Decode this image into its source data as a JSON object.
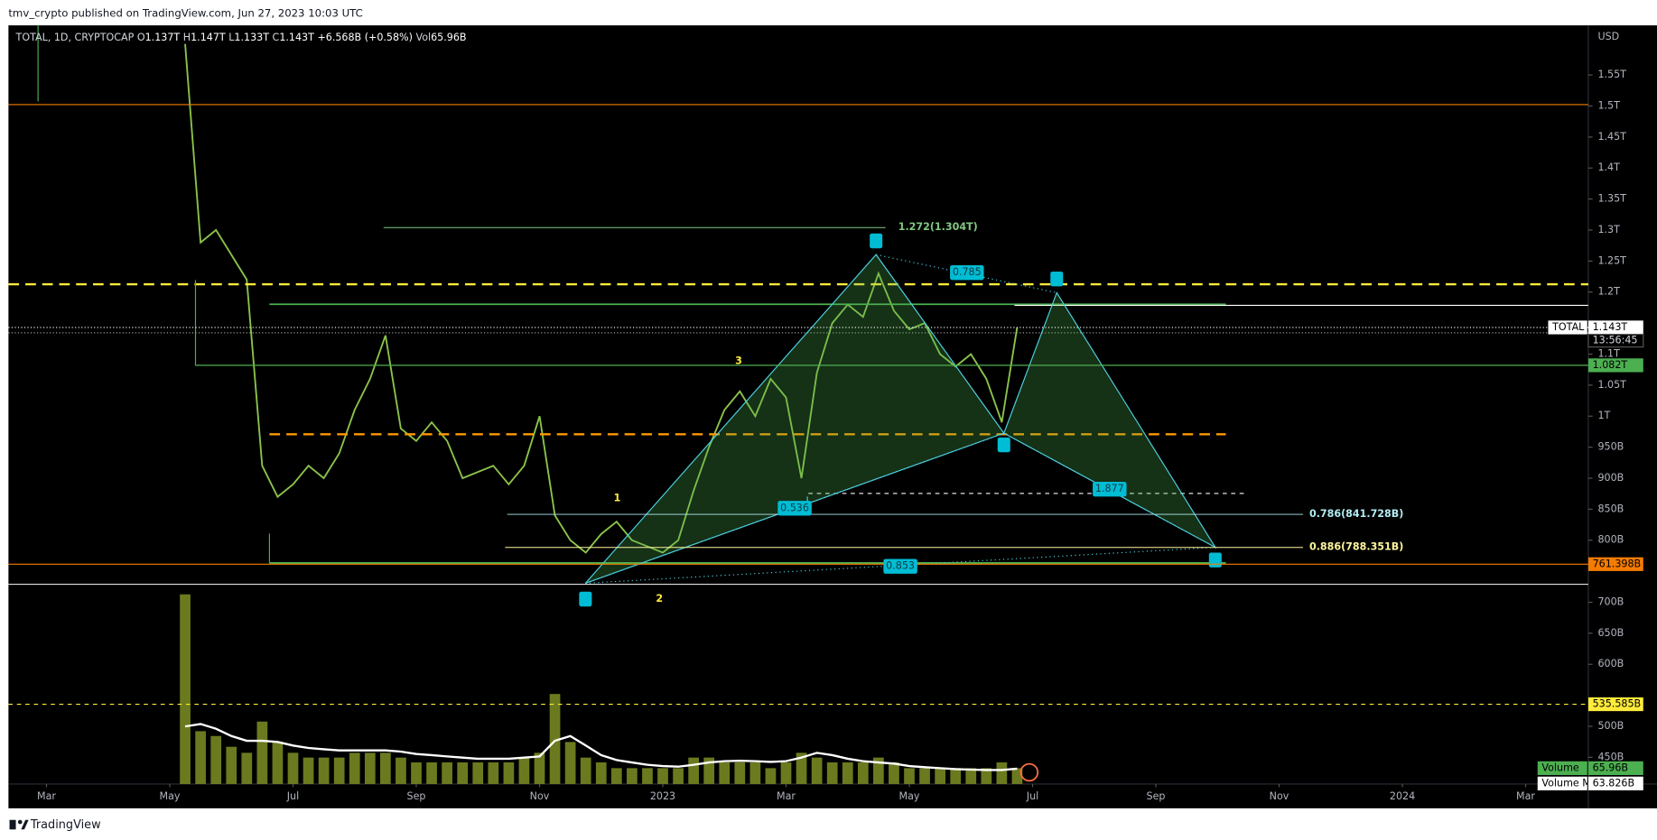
{
  "chart_data": {
    "type": "line",
    "header": "tmv_crypto published on TradingView.com, Jun 27, 2023 10:03 UTC",
    "title": "TOTAL, 1D, CRYPTOCAP",
    "ohlc": [
      {
        "key": "O",
        "text": "1.137T"
      },
      {
        "key": "H",
        "text": "1.147T"
      },
      {
        "key": "L",
        "text": "1.133T"
      },
      {
        "key": "C",
        "text": "1.143T"
      }
    ],
    "change": "+6.568B (+0.58%)",
    "volume_key": "Vol",
    "y_unit": "USD",
    "footer": "TradingView",
    "categories": [
      "Mar",
      null,
      null,
      null,
      null,
      null,
      null,
      null,
      "May",
      null,
      null,
      null,
      null,
      null,
      null,
      null,
      "Jul",
      null,
      null,
      null,
      null,
      null,
      null,
      null,
      "Sep",
      null,
      null,
      null,
      null,
      null,
      null,
      null,
      "Nov",
      null,
      null,
      null,
      null,
      null,
      null,
      null,
      "2023",
      null,
      null,
      null,
      null,
      null,
      null,
      null,
      "Mar",
      null,
      null,
      null,
      null,
      null,
      null,
      null,
      "May",
      null,
      null,
      null,
      null,
      null,
      null,
      null,
      "Jul",
      null,
      null,
      null,
      null,
      null,
      null,
      null,
      "Sep",
      null,
      null,
      null,
      null,
      null,
      null,
      null,
      "Nov",
      null,
      null,
      null,
      null,
      null,
      null,
      null,
      "2024",
      null,
      null,
      null,
      null,
      null,
      null,
      null,
      "Mar"
    ],
    "series": [
      {
        "name": "TOTAL",
        "color": "#8bc34a",
        "values": [
          null,
          null,
          null,
          null,
          null,
          null,
          null,
          null,
          null,
          1600,
          1280,
          1300,
          1260,
          1220,
          920,
          870,
          890,
          920,
          900,
          940,
          1010,
          1060,
          1130,
          980,
          960,
          990,
          960,
          900,
          910,
          920,
          890,
          920,
          1000,
          840,
          800,
          780,
          810,
          830,
          800,
          790,
          780,
          800,
          880,
          950,
          1010,
          1040,
          1000,
          1060,
          1030,
          900,
          1070,
          1150,
          1180,
          1160,
          1230,
          1170,
          1140,
          1150,
          1100,
          1080,
          1100,
          1060,
          990,
          1143,
          null,
          null,
          null,
          null,
          null,
          null,
          null,
          null,
          null,
          null,
          null,
          null,
          null,
          null,
          null,
          null,
          null,
          null,
          null,
          null,
          null,
          null,
          null,
          null,
          null,
          null,
          null,
          null,
          null,
          null,
          null,
          null,
          null
        ]
      },
      {
        "name": "Volume",
        "type": "bar",
        "axis": "y2",
        "color": "#7e8f23",
        "values": [
          null,
          null,
          null,
          null,
          null,
          null,
          null,
          null,
          null,
          790,
          220,
          200,
          155,
          130,
          260,
          175,
          130,
          110,
          110,
          110,
          130,
          130,
          130,
          110,
          90,
          90,
          90,
          90,
          90,
          90,
          90,
          110,
          130,
          375,
          175,
          110,
          90,
          66,
          66,
          66,
          66,
          66,
          110,
          110,
          90,
          90,
          90,
          66,
          90,
          130,
          110,
          90,
          90,
          90,
          110,
          90,
          66,
          66,
          66,
          66,
          66,
          66,
          90,
          65.96,
          null,
          null,
          null,
          null,
          null,
          null,
          null,
          null,
          null,
          null,
          null,
          null,
          null,
          null,
          null,
          null,
          null,
          null,
          null,
          null,
          null,
          null,
          null,
          null,
          null,
          null,
          null,
          null,
          null,
          null,
          null,
          null,
          null
        ],
        "value_labels": [
          null,
          null,
          null,
          null,
          null,
          null,
          null,
          null,
          null,
          null,
          null,
          null,
          null,
          null,
          null,
          null,
          null,
          null,
          null,
          null,
          null,
          null,
          null,
          null,
          null,
          null,
          null,
          null,
          null,
          null,
          null,
          null,
          null,
          null,
          null,
          null,
          null,
          null,
          null,
          null,
          null,
          null,
          null,
          null,
          null,
          null,
          null,
          null,
          null,
          null,
          null,
          null,
          null,
          null,
          null,
          null,
          null,
          null,
          null,
          null,
          null,
          null,
          null,
          "65.96B",
          null,
          null,
          null,
          null,
          null,
          null,
          null,
          null,
          null,
          null,
          null,
          null,
          null,
          null,
          null,
          null,
          null,
          null,
          null,
          null,
          null,
          null,
          null,
          null,
          null,
          null,
          null,
          null,
          null,
          null,
          null,
          null,
          null
        ]
      },
      {
        "name": "Volume MA",
        "axis": "y2",
        "color": "#ffffff",
        "values": [
          null,
          null,
          null,
          null,
          null,
          null,
          null,
          null,
          null,
          240,
          250,
          230,
          200,
          180,
          180,
          175,
          160,
          150,
          145,
          140,
          140,
          140,
          140,
          135,
          125,
          120,
          115,
          110,
          105,
          105,
          105,
          110,
          115,
          180,
          200,
          160,
          120,
          100,
          90,
          80,
          75,
          72,
          80,
          90,
          95,
          97,
          95,
          92,
          95,
          110,
          130,
          120,
          105,
          95,
          90,
          85,
          75,
          70,
          66,
          62,
          60,
          58,
          58,
          63.826,
          null,
          null,
          null,
          null,
          null,
          null,
          null,
          null,
          null,
          null,
          null,
          null,
          null,
          null,
          null,
          null,
          null,
          null,
          null,
          null,
          null,
          null,
          null,
          null,
          null,
          null,
          null,
          null,
          null,
          null,
          null,
          null,
          null
        ],
        "value_labels": [
          null,
          null,
          null,
          null,
          null,
          null,
          null,
          null,
          null,
          null,
          null,
          null,
          null,
          null,
          null,
          null,
          null,
          null,
          null,
          null,
          null,
          null,
          null,
          null,
          null,
          null,
          null,
          null,
          null,
          null,
          null,
          null,
          null,
          null,
          null,
          null,
          null,
          null,
          null,
          null,
          null,
          null,
          null,
          null,
          null,
          null,
          null,
          null,
          null,
          null,
          null,
          null,
          null,
          null,
          null,
          null,
          null,
          null,
          null,
          null,
          null,
          null,
          null,
          "63.826B",
          null,
          null,
          null,
          null,
          null,
          null,
          null,
          null,
          null,
          null,
          null,
          null,
          null,
          null,
          null,
          null,
          null,
          null,
          null,
          null,
          null,
          null,
          null,
          null,
          null,
          null,
          null,
          null,
          null,
          null,
          null,
          null,
          null
        ]
      }
    ],
    "ylim": [
      407,
      1630
    ],
    "yticks": [
      {
        "value": 1550,
        "label": "1.55T"
      },
      {
        "value": 1500,
        "label": "1.5T"
      },
      {
        "value": 1450,
        "label": "1.45T"
      },
      {
        "value": 1400,
        "label": "1.4T"
      },
      {
        "value": 1350,
        "label": "1.35T"
      },
      {
        "value": 1300,
        "label": "1.3T"
      },
      {
        "value": 1250,
        "label": "1.25T"
      },
      {
        "value": 1200,
        "label": "1.2T"
      },
      {
        "value": 1100,
        "label": "1.1T"
      },
      {
        "value": 1050,
        "label": "1.05T"
      },
      {
        "value": 1000,
        "label": "1T"
      },
      {
        "value": 950,
        "label": "950B"
      },
      {
        "value": 900,
        "label": "900B"
      },
      {
        "value": 850,
        "label": "850B"
      },
      {
        "value": 800,
        "label": "800B"
      },
      {
        "value": 700,
        "label": "700B"
      },
      {
        "value": 650,
        "label": "650B"
      },
      {
        "value": 600,
        "label": "600B"
      },
      {
        "value": 500,
        "label": "500B"
      },
      {
        "value": 450,
        "label": "450B"
      }
    ],
    "y2lim": [
      0,
      3160
    ],
    "price_labels": [
      {
        "value": 1143,
        "label": "1.143T",
        "color": "#ffffff",
        "countdown": "13:56:45"
      },
      {
        "value": 1082,
        "label": "1.082T",
        "color": "#4caf50"
      },
      {
        "value": 761.398,
        "label": "761.398B",
        "color": "#f57c00"
      },
      {
        "value": 535.585,
        "label": "535.585B",
        "color": "#ffeb3b"
      }
    ],
    "fib_levels": [
      {
        "value": 1304,
        "label": "1.272(1.304T)",
        "color": "#81c784"
      },
      {
        "value": 841.728,
        "label": "0.786(841.728B)",
        "color": "#b2ebf2"
      },
      {
        "value": 788.351,
        "label": "0.886(788.351B)",
        "color": "#fff59d"
      }
    ],
    "pattern_ratios": [
      "0.785",
      "0.536",
      "0.853",
      "1.877"
    ],
    "wave_labels": [
      "1",
      "2",
      "3"
    ]
  }
}
